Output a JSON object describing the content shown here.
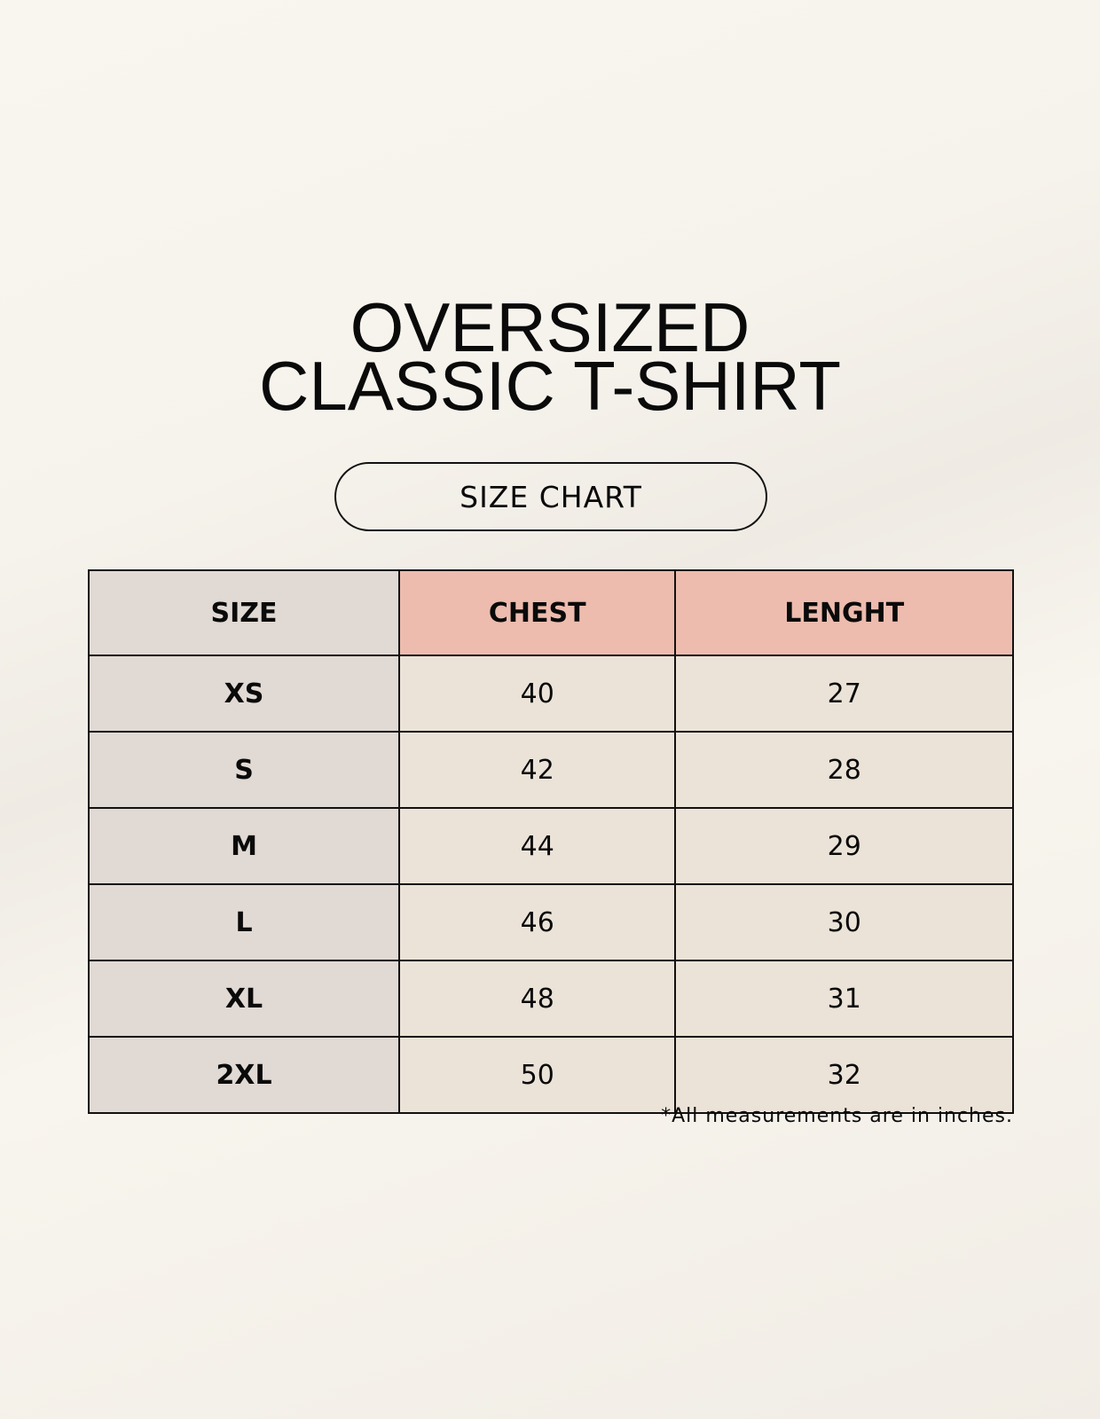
{
  "title": {
    "line1": "OVERSIZED",
    "line2": "CLASSIC T-SHIRT"
  },
  "badge": "SIZE CHART",
  "table": {
    "headers": [
      "SIZE",
      "CHEST",
      "LENGHT"
    ],
    "rows": [
      [
        "XS",
        "40",
        "27"
      ],
      [
        "S",
        "42",
        "28"
      ],
      [
        "M",
        "44",
        "29"
      ],
      [
        "L",
        "46",
        "30"
      ],
      [
        "XL",
        "48",
        "31"
      ],
      [
        "2XL",
        "50",
        "32"
      ]
    ]
  },
  "footnote": "*All measurements are in inches.",
  "colors": {
    "size_column": "#e1d9d3",
    "header_accent": "#edbcae",
    "cell": "#ebe3d8",
    "background": "#f8f5ee"
  }
}
